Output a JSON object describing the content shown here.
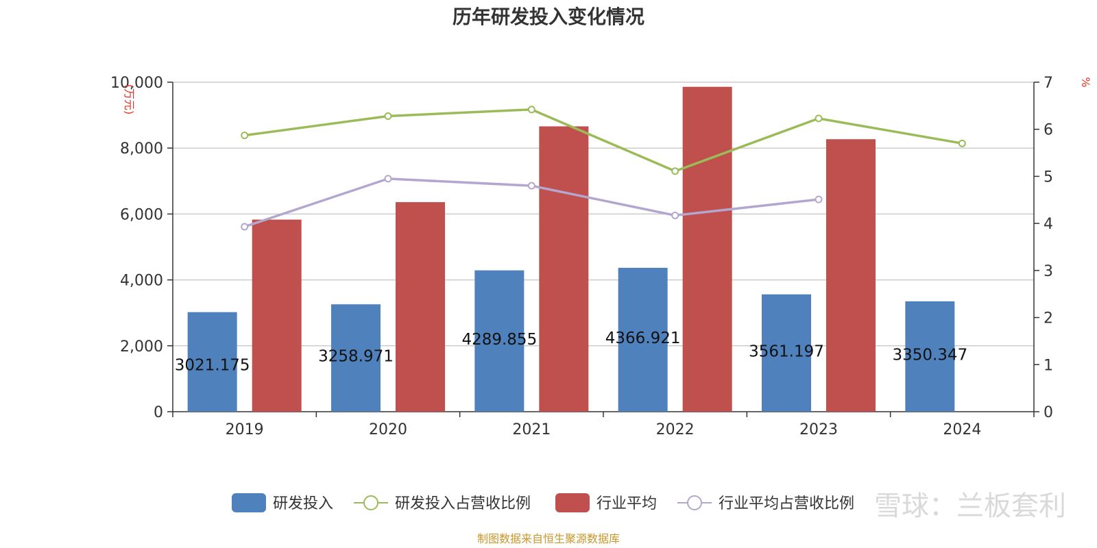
{
  "chart_data": {
    "type": "bar",
    "title": "历年研发投入变化情况",
    "categories": [
      "2019",
      "2020",
      "2021",
      "2022",
      "2023",
      "2024"
    ],
    "y_left": {
      "unit_label": "(万元)",
      "min": 0,
      "max": 10000,
      "ticks": [
        "0",
        "2,000",
        "4,000",
        "6,000",
        "8,000",
        "10,000"
      ],
      "tick_values": [
        0,
        2000,
        4000,
        6000,
        8000,
        10000
      ]
    },
    "y_right": {
      "unit_label": "%",
      "min": 0,
      "max": 7,
      "ticks": [
        "0",
        "1",
        "2",
        "3",
        "4",
        "5",
        "6",
        "7"
      ],
      "tick_values": [
        0,
        1,
        2,
        3,
        4,
        5,
        6,
        7
      ]
    },
    "grid": true,
    "legend_position": "bottom",
    "series": [
      {
        "name": "研发投入",
        "type": "bar",
        "axis": "left",
        "color": "#4f81bd",
        "values": [
          3021.175,
          3258.971,
          4289.855,
          4366.921,
          3561.197,
          3350.347
        ],
        "labels": [
          "3021.175",
          "3258.971",
          "4289.855",
          "4366.921",
          "3561.197",
          "3350.347"
        ]
      },
      {
        "name": "研发投入占营收比例",
        "type": "line",
        "axis": "right",
        "color": "#9bbb59",
        "values": [
          5.87,
          6.28,
          6.42,
          5.11,
          6.23,
          5.7
        ]
      },
      {
        "name": "行业平均",
        "type": "bar",
        "axis": "left",
        "color": "#c0504d",
        "values": [
          5830,
          6360,
          8660,
          9860,
          8270,
          null
        ]
      },
      {
        "name": "行业平均占营收比例",
        "type": "line",
        "axis": "right",
        "color": "#b3a7cf",
        "values": [
          3.93,
          4.95,
          4.8,
          4.17,
          4.51,
          null
        ]
      }
    ],
    "source_note": "制图数据来自恒生聚源数据库",
    "watermark": "雪球：兰板套利"
  }
}
